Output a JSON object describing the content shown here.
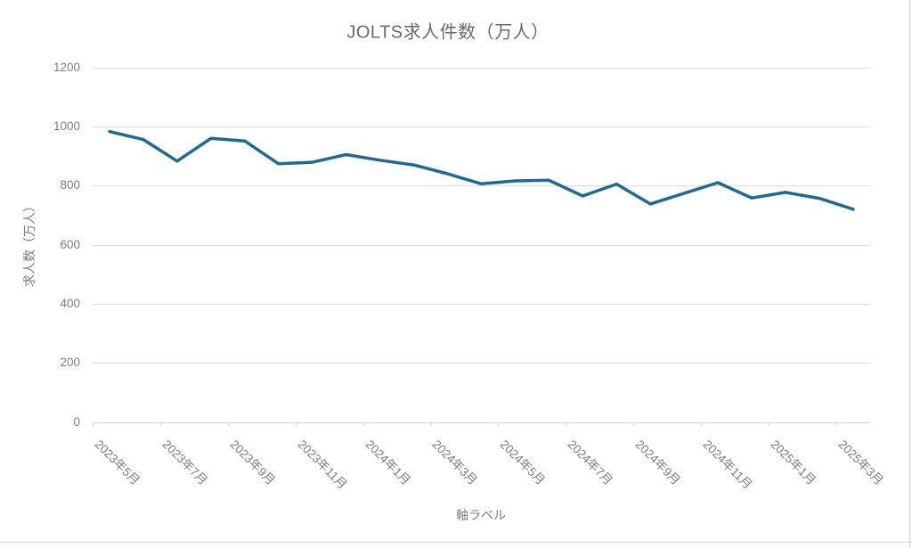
{
  "chart_data": {
    "type": "line",
    "title": "JOLTS求人件数（万人）",
    "xlabel": "軸ラベル",
    "ylabel": "求人数（万人）",
    "categories": [
      "2023年5月",
      "2023年6月",
      "2023年7月",
      "2023年8月",
      "2023年9月",
      "2023年10月",
      "2023年11月",
      "2023年12月",
      "2024年1月",
      "2024年2月",
      "2024年3月",
      "2024年4月",
      "2024年5月",
      "2024年6月",
      "2024年7月",
      "2024年8月",
      "2024年9月",
      "2024年10月",
      "2024年11月",
      "2024年12月",
      "2025年1月",
      "2025年2月",
      "2025年3月"
    ],
    "series": [
      {
        "name": "JOLTS求人件数",
        "values": [
          983,
          956,
          883,
          960,
          951,
          874,
          879,
          905,
          886,
          870,
          840,
          806,
          816,
          818,
          765,
          805,
          738,
          774,
          810,
          758,
          777,
          757,
          720
        ]
      }
    ],
    "visible_x_tick_labels": [
      "2023年5月",
      "2023年7月",
      "2023年9月",
      "2023年11月",
      "2024年1月",
      "2024年3月",
      "2024年5月",
      "2024年7月",
      "2024年9月",
      "2024年11月",
      "2025年1月",
      "2025年3月"
    ],
    "x_label_interval": 2,
    "yticks": [
      0,
      200,
      400,
      600,
      800,
      1000,
      1200
    ],
    "ylim": [
      0,
      1200
    ],
    "grid": true,
    "legend": false,
    "colors": {
      "line": "#20698f",
      "grid": "#dcdcdc",
      "axis": "#d4d4d4",
      "title_text": "#6a6a6a",
      "tick_text": "#7d7d7d",
      "background": "#ffffff"
    }
  }
}
